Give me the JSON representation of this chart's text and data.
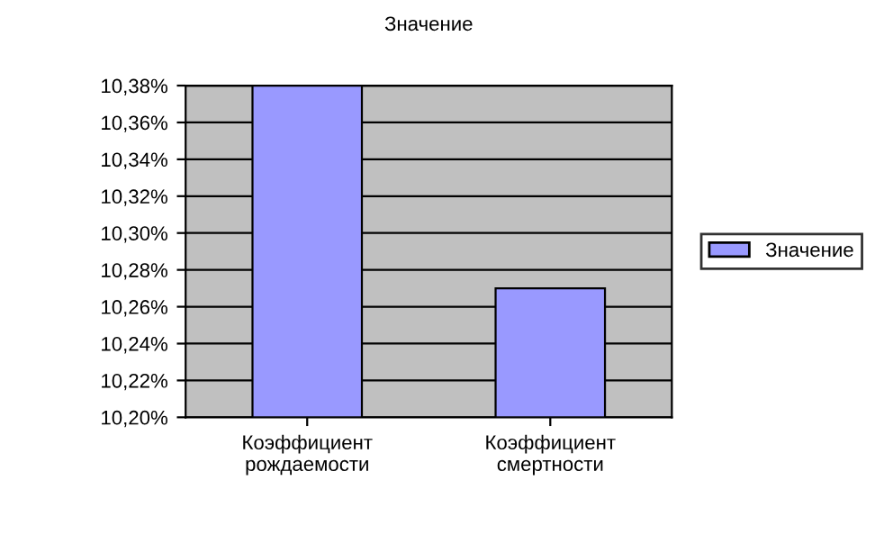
{
  "chart_data": {
    "type": "bar",
    "title": "Значение",
    "categories": [
      "Коэффициент\nрождаемости",
      "Коэффициент\nсмертности"
    ],
    "series": [
      {
        "name": "Значение",
        "color": "#9999ff",
        "values": [
          10.38,
          10.27
        ]
      }
    ],
    "ylim": [
      10.2,
      10.38
    ],
    "yticks": [
      {
        "value": 10.2,
        "label": "10,20%"
      },
      {
        "value": 10.22,
        "label": "10,22%"
      },
      {
        "value": 10.24,
        "label": "10,24%"
      },
      {
        "value": 10.26,
        "label": "10,26%"
      },
      {
        "value": 10.28,
        "label": "10,28%"
      },
      {
        "value": 10.3,
        "label": "10,30%"
      },
      {
        "value": 10.32,
        "label": "10,32%"
      },
      {
        "value": 10.34,
        "label": "10,34%"
      },
      {
        "value": 10.36,
        "label": "10,36%"
      },
      {
        "value": 10.38,
        "label": "10,38%"
      }
    ],
    "grid": "y",
    "legend": "right"
  }
}
